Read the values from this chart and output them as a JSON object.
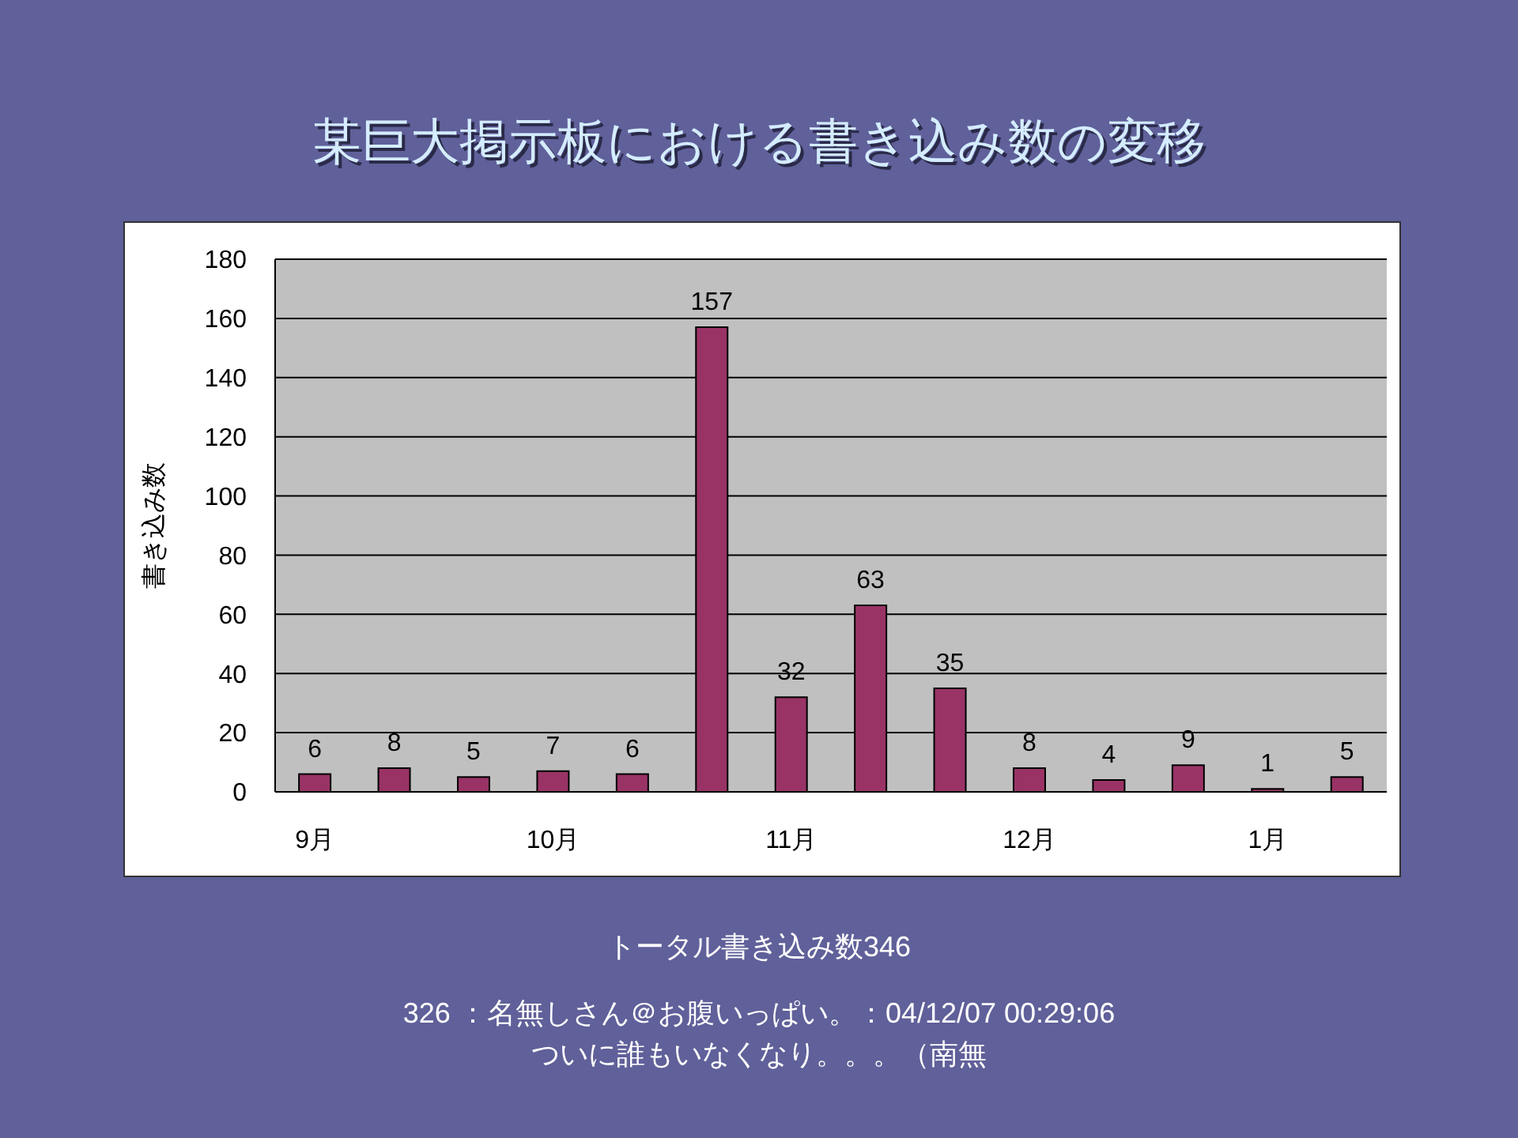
{
  "chart_data": {
    "type": "bar",
    "title": "某巨大掲示板における書き込み数の変移",
    "ylabel": "書き込み数",
    "categories": [
      "9月",
      null,
      null,
      "10月",
      null,
      null,
      "11月",
      null,
      null,
      "12月",
      null,
      null,
      "1月",
      null
    ],
    "values": [
      6,
      8,
      5,
      7,
      6,
      157,
      32,
      63,
      35,
      8,
      4,
      9,
      1,
      5
    ],
    "color": "#993366",
    "ylim": [
      0,
      180
    ],
    "yticks": [
      0,
      20,
      40,
      60,
      80,
      100,
      120,
      140,
      160,
      180
    ],
    "grid": "y",
    "data_labels": true,
    "annotations": [
      "トータル書き込み数346",
      "326 ：名無しさん＠お腹いっぱい。：04/12/07 00:29:06",
      "ついに誰もいなくなり。。。（南無"
    ]
  }
}
